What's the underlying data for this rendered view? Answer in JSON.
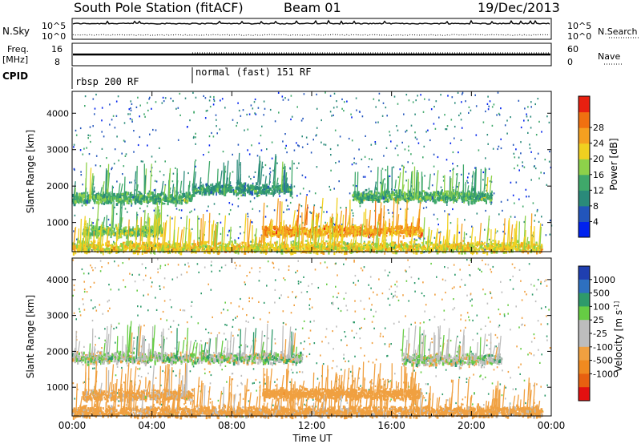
{
  "header": {
    "station": "South Pole Station (fitACF)",
    "beam": "Beam 01",
    "date": "19/Dec/2013"
  },
  "noise_panel": {
    "left_label": "N.Sky",
    "right_label": "N.Search",
    "left_ticks": [
      "10^5",
      "10^0"
    ],
    "right_ticks": [
      "10^5",
      "10^0"
    ]
  },
  "freq_panel": {
    "left_label_1": "Freq.",
    "left_label_2": "[MHz]",
    "right_label": "Nave",
    "left_ticks": [
      "16",
      "8"
    ],
    "right_ticks": [
      "60",
      "0"
    ]
  },
  "cpid": {
    "label": "CPID",
    "modes": [
      {
        "name": "rbsp 200 RF",
        "start": "00:00",
        "end": "06:00"
      },
      {
        "name": "normal (fast) 151 RF",
        "start": "06:00",
        "end": "00:00"
      }
    ]
  },
  "chart_data": [
    {
      "type": "heatmap",
      "title": "Power",
      "xlabel": "",
      "ylabel": "Slant Range [km]",
      "x_ticks": [
        "00:00",
        "04:00",
        "08:00",
        "12:00",
        "16:00",
        "20:00",
        "00:00"
      ],
      "y_ticks": [
        "1000",
        "2000",
        "3000",
        "4000"
      ],
      "ylim": [
        200,
        4600
      ],
      "colorbar": {
        "label": "Power [dB]",
        "ticks": [
          "4",
          "8",
          "12",
          "16",
          "20",
          "24",
          "28"
        ],
        "range": [
          0,
          30
        ],
        "colors": [
          "#0022ee",
          "#2255bb",
          "#2a8a7a",
          "#3fa86a",
          "#8dd14a",
          "#f0d020",
          "#f5a020",
          "#f07010",
          "#e82010"
        ]
      },
      "features": [
        {
          "t_start": 0.0,
          "t_end": 6.0,
          "range_km": 1700,
          "power_db": 12
        },
        {
          "t_start": 6.0,
          "t_end": 11.0,
          "range_km": 1950,
          "power_db": 10
        },
        {
          "t_start": 14.0,
          "t_end": 21.0,
          "range_km": 1750,
          "power_db": 12
        },
        {
          "t_start": 9.5,
          "t_end": 17.5,
          "range_km": 800,
          "power_db": 22
        },
        {
          "t_start": 0.5,
          "t_end": 4.5,
          "range_km": 800,
          "power_db": 14
        },
        {
          "t_start": 0.0,
          "t_end": 23.5,
          "range_km": 350,
          "power_db": 18
        }
      ]
    },
    {
      "type": "heatmap",
      "title": "Velocity",
      "xlabel": "Time UT",
      "ylabel": "Slant Range [km]",
      "x_ticks": [
        "00:00",
        "04:00",
        "08:00",
        "12:00",
        "16:00",
        "20:00",
        "00:00"
      ],
      "y_ticks": [
        "1000",
        "2000",
        "3000",
        "4000"
      ],
      "ylim": [
        200,
        4600
      ],
      "colorbar": {
        "label": "Velocity [m s^-1]",
        "ticks": [
          "1000",
          "500",
          "100",
          "25",
          "-25",
          "-100",
          "-500",
          "-1000"
        ],
        "colors": [
          "#1f3fb0",
          "#2e70c0",
          "#2e9a6a",
          "#66cc44",
          "#bdbdbd",
          "#bdbdbd",
          "#f0a040",
          "#f08a20",
          "#e86010",
          "#e21010"
        ]
      },
      "features": [
        {
          "t_start": 0.0,
          "t_end": 11.5,
          "range_km": 1850,
          "velocity_ms": 0
        },
        {
          "t_start": 16.5,
          "t_end": 21.5,
          "range_km": 1800,
          "velocity_ms": 0
        },
        {
          "t_start": 9.5,
          "t_end": 17.5,
          "range_km": 850,
          "velocity_ms": -300
        },
        {
          "t_start": 0.5,
          "t_end": 6.0,
          "range_km": 800,
          "velocity_ms": -150
        },
        {
          "t_start": 0.0,
          "t_end": 23.5,
          "range_km": 350,
          "velocity_ms": -200
        }
      ]
    }
  ]
}
